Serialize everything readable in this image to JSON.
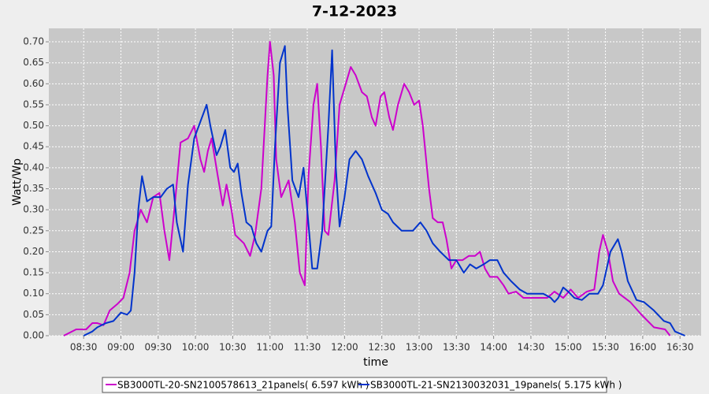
{
  "chart_data": {
    "type": "line",
    "title": "7-12-2023",
    "x_label": "time",
    "y_label": "Watt/Wp",
    "xlim": [
      482,
      1007
    ],
    "ylim": [
      0,
      0.732
    ],
    "grid": true,
    "xticks": [
      {
        "value": 510,
        "label": "08:30"
      },
      {
        "value": 540,
        "label": "09:00"
      },
      {
        "value": 570,
        "label": "09:30"
      },
      {
        "value": 600,
        "label": "10:00"
      },
      {
        "value": 630,
        "label": "10:30"
      },
      {
        "value": 660,
        "label": "11:00"
      },
      {
        "value": 690,
        "label": "11:30"
      },
      {
        "value": 720,
        "label": "12:00"
      },
      {
        "value": 750,
        "label": "12:30"
      },
      {
        "value": 780,
        "label": "13:00"
      },
      {
        "value": 810,
        "label": "13:30"
      },
      {
        "value": 840,
        "label": "14:00"
      },
      {
        "value": 870,
        "label": "14:30"
      },
      {
        "value": 900,
        "label": "15:00"
      },
      {
        "value": 930,
        "label": "15:30"
      },
      {
        "value": 960,
        "label": "16:00"
      },
      {
        "value": 990,
        "label": "16:30"
      }
    ],
    "yticks": [
      {
        "value": 0,
        "label": "0.00"
      },
      0.05,
      {
        "value": 0.1,
        "label": "0.10"
      },
      0.15,
      {
        "value": 0.2,
        "label": "0.20"
      },
      0.25,
      {
        "value": 0.3,
        "label": "0.30"
      },
      0.35,
      {
        "value": 0.4,
        "label": "0.40"
      },
      0.45,
      {
        "value": 0.5,
        "label": "0.50"
      },
      0.55,
      {
        "value": 0.6,
        "label": "0.60"
      },
      0.65,
      {
        "value": 0.7,
        "label": "0.70"
      }
    ],
    "series": [
      {
        "name": "SB3000TL-20-SN2100578613_21panels( 6.597 kWh )",
        "color": "#cc00cc",
        "x": [
          494,
          504,
          512,
          517,
          521,
          526,
          531,
          537,
          542,
          547,
          551,
          556,
          561,
          566,
          571,
          575,
          579,
          583,
          588,
          594,
          599,
          604,
          607,
          610,
          613,
          618,
          622,
          625,
          629,
          632,
          639,
          644,
          648,
          653,
          658,
          660,
          663,
          665,
          669,
          675,
          680,
          684,
          688,
          691,
          695,
          698,
          701,
          704,
          707,
          712,
          716,
          721,
          725,
          729,
          734,
          738,
          742,
          745,
          749,
          752,
          756,
          759,
          763,
          768,
          772,
          776,
          780,
          783,
          788,
          791,
          795,
          799,
          802,
          806,
          810,
          815,
          820,
          825,
          829,
          833,
          837,
          843,
          848,
          852,
          858,
          864,
          873,
          883,
          889,
          896,
          902,
          908,
          915,
          921,
          925,
          928,
          932,
          936,
          941,
          950,
          959,
          969,
          978,
          982
        ],
        "values": [
          0,
          0.015,
          0.015,
          0.03,
          0.03,
          0.025,
          0.06,
          0.075,
          0.09,
          0.15,
          0.25,
          0.3,
          0.27,
          0.33,
          0.34,
          0.25,
          0.18,
          0.3,
          0.46,
          0.47,
          0.5,
          0.42,
          0.39,
          0.44,
          0.47,
          0.38,
          0.31,
          0.36,
          0.3,
          0.24,
          0.22,
          0.19,
          0.24,
          0.35,
          0.62,
          0.7,
          0.62,
          0.42,
          0.33,
          0.37,
          0.27,
          0.15,
          0.12,
          0.38,
          0.55,
          0.6,
          0.45,
          0.25,
          0.24,
          0.37,
          0.55,
          0.6,
          0.64,
          0.62,
          0.58,
          0.57,
          0.52,
          0.5,
          0.57,
          0.58,
          0.52,
          0.49,
          0.55,
          0.6,
          0.58,
          0.55,
          0.56,
          0.5,
          0.35,
          0.28,
          0.27,
          0.27,
          0.23,
          0.16,
          0.18,
          0.18,
          0.19,
          0.19,
          0.2,
          0.16,
          0.14,
          0.14,
          0.12,
          0.1,
          0.105,
          0.09,
          0.09,
          0.09,
          0.105,
          0.09,
          0.11,
          0.09,
          0.105,
          0.11,
          0.2,
          0.24,
          0.2,
          0.13,
          0.1,
          0.08,
          0.05,
          0.02,
          0.015,
          0
        ]
      },
      {
        "name": "SB3000TL-21-SN2130032031_19panels( 5.175 kWh )",
        "color": "#0033cc",
        "x": [
          510,
          517,
          521,
          528,
          534,
          540,
          545,
          548,
          551,
          554,
          557,
          561,
          566,
          572,
          577,
          582,
          585,
          590,
          594,
          599,
          604,
          609,
          612,
          617,
          620,
          624,
          628,
          631,
          634,
          637,
          641,
          645,
          649,
          653,
          658,
          661,
          664,
          668,
          672,
          674,
          678,
          683,
          687,
          690,
          694,
          698,
          702,
          707,
          710,
          713,
          716,
          720,
          724,
          729,
          734,
          739,
          745,
          750,
          755,
          759,
          766,
          775,
          781,
          786,
          791,
          797,
          804,
          810,
          816,
          821,
          826,
          832,
          837,
          843,
          848,
          854,
          861,
          867,
          880,
          886,
          889,
          892,
          896,
          900,
          905,
          911,
          917,
          924,
          928,
          934,
          940,
          943,
          948,
          955,
          961,
          969,
          977,
          982,
          986,
          994
        ],
        "values": [
          0,
          0.01,
          0.02,
          0.03,
          0.035,
          0.055,
          0.05,
          0.06,
          0.15,
          0.3,
          0.38,
          0.32,
          0.33,
          0.33,
          0.35,
          0.36,
          0.27,
          0.2,
          0.36,
          0.47,
          0.51,
          0.55,
          0.5,
          0.43,
          0.45,
          0.49,
          0.4,
          0.39,
          0.41,
          0.34,
          0.27,
          0.26,
          0.22,
          0.2,
          0.25,
          0.26,
          0.45,
          0.65,
          0.69,
          0.55,
          0.37,
          0.33,
          0.4,
          0.3,
          0.16,
          0.16,
          0.25,
          0.5,
          0.68,
          0.4,
          0.26,
          0.33,
          0.42,
          0.44,
          0.42,
          0.38,
          0.34,
          0.3,
          0.29,
          0.27,
          0.25,
          0.25,
          0.27,
          0.25,
          0.22,
          0.2,
          0.18,
          0.18,
          0.15,
          0.17,
          0.16,
          0.17,
          0.18,
          0.18,
          0.15,
          0.13,
          0.11,
          0.1,
          0.1,
          0.09,
          0.08,
          0.09,
          0.115,
          0.105,
          0.09,
          0.085,
          0.1,
          0.1,
          0.12,
          0.2,
          0.23,
          0.2,
          0.13,
          0.085,
          0.08,
          0.06,
          0.035,
          0.03,
          0.01,
          0
        ]
      }
    ]
  }
}
